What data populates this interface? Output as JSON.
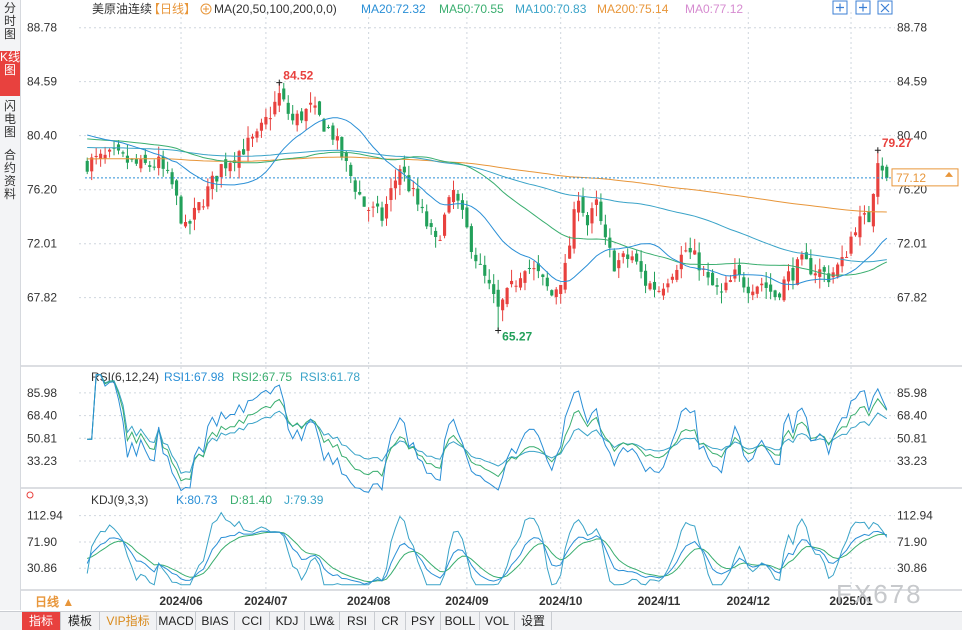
{
  "sidebar": {
    "tabs": [
      {
        "label": "分时图",
        "active": false
      },
      {
        "label": "K线图",
        "active": true
      },
      {
        "label": "闪电图",
        "active": false
      },
      {
        "label": "合约资料",
        "active": false
      }
    ]
  },
  "header": {
    "instrument": "美原油连续",
    "period": "【日线】",
    "ma_label": "MA(20,50,100,200,0,0)",
    "ma_values": [
      {
        "text": "MA20:72.32",
        "color": "#2a8fd6"
      },
      {
        "text": "MA50:70.55",
        "color": "#3aae6f"
      },
      {
        "text": "MA100:70.83",
        "color": "#3aa3c8"
      },
      {
        "text": "MA200:75.14",
        "color": "#e8963a"
      },
      {
        "text": "MA0:77.12",
        "color": "#d68bd0"
      }
    ]
  },
  "colors": {
    "up": "#e8413e",
    "down": "#22a05a",
    "ma20": "#2a8fd6",
    "ma50": "#3aae6f",
    "ma100": "#3aa3c8",
    "ma200": "#e8963a",
    "grid": "#cfd6de",
    "axis": "#333333"
  },
  "chart_data": {
    "type": "candlestick",
    "price_axis": {
      "ticks": [
        "88.78",
        "84.59",
        "80.40",
        "76.20",
        "72.01",
        "67.82"
      ],
      "range": [
        63.6,
        90.0
      ]
    },
    "annotations": {
      "high": {
        "text": "84.52",
        "value": 84.52,
        "index": 43
      },
      "low": {
        "text": "65.27",
        "value": 65.27,
        "index": 92
      },
      "recent": {
        "text": "79.27",
        "value": 79.27,
        "index": 177
      },
      "last_price": {
        "text": "77.12",
        "value": 77.12
      }
    },
    "x_labels": [
      {
        "text": "2024/06",
        "index": 21
      },
      {
        "text": "2024/07",
        "index": 40
      },
      {
        "text": "2024/08",
        "index": 63
      },
      {
        "text": "2024/09",
        "index": 85
      },
      {
        "text": "2024/10",
        "index": 106
      },
      {
        "text": "2024/11",
        "index": 128
      },
      {
        "text": "2024/12",
        "index": 148
      },
      {
        "text": "2025/01",
        "index": 171
      }
    ],
    "rsi": {
      "title": "RSI(6,12,24)",
      "legend": [
        {
          "text": "RSI1:67.98",
          "color": "#2a8fd6"
        },
        {
          "text": "RSI2:67.75",
          "color": "#3aae6f"
        },
        {
          "text": "RSI3:61.78",
          "color": "#3aa3c8"
        }
      ],
      "ticks": [
        "85.98",
        "68.40",
        "50.81",
        "33.23"
      ],
      "range": [
        20,
        96
      ]
    },
    "kdj": {
      "title": "KDJ(9,3,3)",
      "legend": [
        {
          "text": "K:80.73",
          "color": "#2a8fd6"
        },
        {
          "text": "D:81.40",
          "color": "#3aae6f"
        },
        {
          "text": "J:79.39",
          "color": "#3aa3c8"
        }
      ],
      "ticks": [
        "112.94",
        "71.90",
        "30.86"
      ],
      "range": [
        0,
        128
      ]
    }
  },
  "watermark": "FX678",
  "period_button": "日线 ▲",
  "bottom_tabs": [
    {
      "label": "指标",
      "w": 38,
      "active": true,
      "vip": false
    },
    {
      "label": "模板",
      "w": 38,
      "active": false,
      "vip": false
    },
    {
      "label": "VIP指标",
      "w": 56,
      "active": false,
      "vip": true
    },
    {
      "label": "MACD",
      "w": 38,
      "active": false,
      "vip": false
    },
    {
      "label": "BIAS",
      "w": 38,
      "active": false,
      "vip": false
    },
    {
      "label": "CCI",
      "w": 34,
      "active": false,
      "vip": false
    },
    {
      "label": "KDJ",
      "w": 34,
      "active": false,
      "vip": false
    },
    {
      "label": "LW&",
      "w": 34,
      "active": false,
      "vip": false
    },
    {
      "label": "RSI",
      "w": 34,
      "active": false,
      "vip": false
    },
    {
      "label": "CR",
      "w": 30,
      "active": false,
      "vip": false
    },
    {
      "label": "PSY",
      "w": 34,
      "active": false,
      "vip": false
    },
    {
      "label": "BOLL",
      "w": 38,
      "active": false,
      "vip": false
    },
    {
      "label": "VOL",
      "w": 34,
      "active": false,
      "vip": false
    },
    {
      "label": "设置",
      "w": 36,
      "active": false,
      "vip": false
    }
  ]
}
